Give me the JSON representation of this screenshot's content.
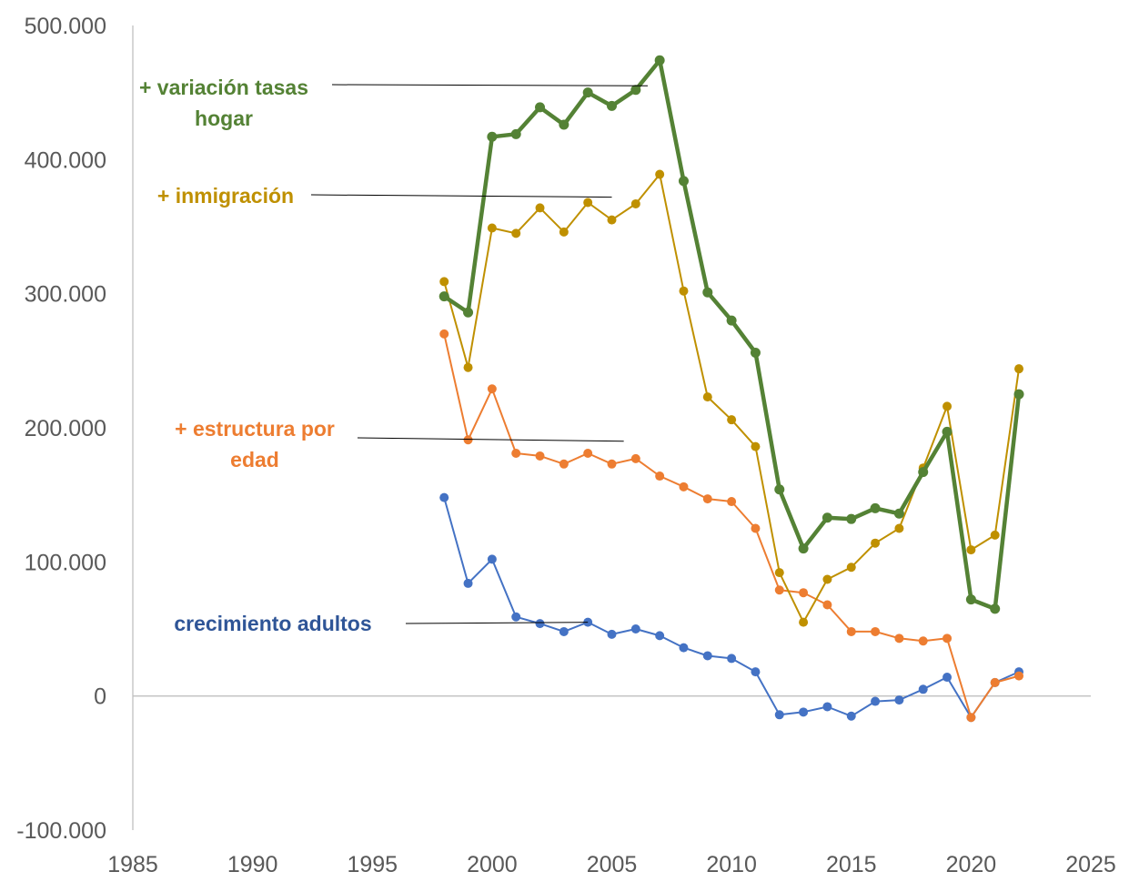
{
  "chart_data": {
    "type": "line",
    "title": "",
    "xlabel": "",
    "ylabel": "",
    "xlim": [
      1985,
      2025
    ],
    "ylim": [
      -100000,
      500000
    ],
    "x_ticks": [
      1985,
      1990,
      1995,
      2000,
      2005,
      2010,
      2015,
      2020,
      2025
    ],
    "x_tick_labels": [
      "1985",
      "1990",
      "1995",
      "2000",
      "2005",
      "2010",
      "2015",
      "2020",
      "2025"
    ],
    "y_ticks": [
      -100000,
      0,
      100000,
      200000,
      300000,
      400000,
      500000
    ],
    "y_tick_labels": [
      "-100.000",
      "0",
      "100.000",
      "200.000",
      "300.000",
      "400.000",
      "500.000"
    ],
    "grid": false,
    "legend": "none",
    "x": [
      1998,
      1999,
      2000,
      2001,
      2002,
      2003,
      2004,
      2005,
      2006,
      2007,
      2008,
      2009,
      2010,
      2011,
      2012,
      2013,
      2014,
      2015,
      2016,
      2017,
      2018,
      2019,
      2020,
      2021,
      2022
    ],
    "series": [
      {
        "color": "#4472c4",
        "stroke": 2,
        "values": [
          148000,
          84000,
          102000,
          59000,
          54000,
          48000,
          55000,
          46000,
          50000,
          45000,
          36000,
          30000,
          28000,
          18000,
          -14000,
          -12000,
          -8000,
          -15000,
          -4000,
          -3000,
          5000,
          14000,
          -16000,
          10000,
          18000
        ]
      },
      {
        "color": "#ed7d31",
        "stroke": 2,
        "values": [
          270000,
          191000,
          229000,
          181000,
          179000,
          173000,
          181000,
          173000,
          177000,
          164000,
          156000,
          147000,
          145000,
          125000,
          79000,
          77000,
          68000,
          48000,
          48000,
          43000,
          41000,
          43000,
          -16000,
          10000,
          15000
        ]
      },
      {
        "color": "#bf9000",
        "stroke": 2,
        "values": [
          309000,
          245000,
          349000,
          345000,
          364000,
          346000,
          368000,
          355000,
          367000,
          389000,
          302000,
          223000,
          206000,
          186000,
          92000,
          55000,
          87000,
          96000,
          114000,
          125000,
          170000,
          216000,
          109000,
          120000,
          244000
        ]
      },
      {
        "color": "#548235",
        "stroke": 4.5,
        "values": [
          298000,
          286000,
          417000,
          419000,
          439000,
          426000,
          450000,
          440000,
          452000,
          474000,
          384000,
          301000,
          280000,
          256000,
          154000,
          110000,
          133000,
          132000,
          140000,
          136000,
          167000,
          197000,
          72000,
          65000,
          225000
        ]
      }
    ],
    "annotations": [
      {
        "lines": [
          "+ variación tasas",
          "hogar"
        ],
        "color": "#548235",
        "point_to_x": 2006.5,
        "point_to_y": 455000
      },
      {
        "lines": [
          "+ inmigración"
        ],
        "color": "#bf9000",
        "point_to_x": 2005,
        "point_to_y": 372000
      },
      {
        "lines": [
          "+ estructura por",
          "edad"
        ],
        "color": "#ed7d31",
        "point_to_x": 2005.5,
        "point_to_y": 190000
      },
      {
        "lines": [
          "crecimiento adultos"
        ],
        "color": "#2f5597",
        "point_to_x": 2004,
        "point_to_y": 55000
      }
    ]
  }
}
